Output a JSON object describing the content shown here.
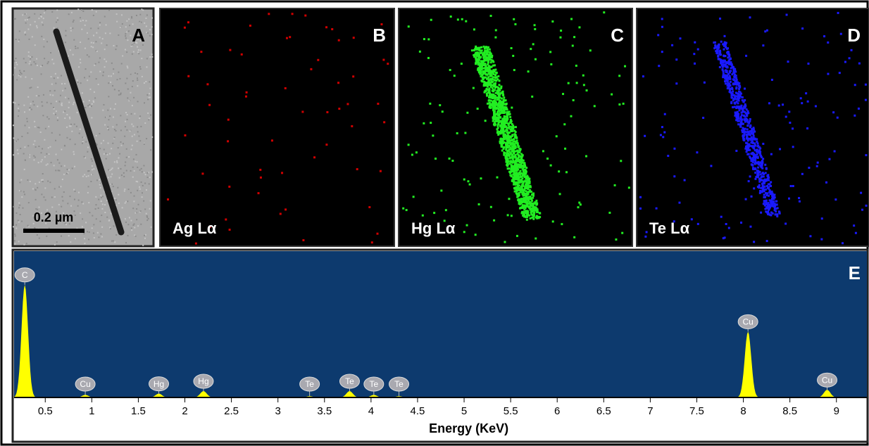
{
  "panels": [
    {
      "label": "A",
      "scale_bar": "0.2 µm"
    },
    {
      "label": "B",
      "element": "Ag Lα",
      "color": "#d00000"
    },
    {
      "label": "C",
      "element": "Hg Lα",
      "color": "#22ee22"
    },
    {
      "label": "D",
      "element": "Te Lα",
      "color": "#1a1aff"
    }
  ],
  "chart_data": {
    "type": "spectrum",
    "label": "E",
    "xlabel": "Energy (KeV)",
    "xlim": [
      0.15,
      9.35
    ],
    "ylim": [
      0,
      100
    ],
    "xticks": [
      0.5,
      1,
      1.5,
      2,
      2.5,
      3,
      3.5,
      4,
      4.5,
      5,
      5.5,
      6,
      6.5,
      7,
      7.5,
      8,
      8.5,
      9
    ],
    "color": "#ffff00",
    "background": "#0d3a6e",
    "peaks": {
      "labels": [
        "C",
        "Cu",
        "Hg",
        "Hg",
        "Te",
        "Te",
        "Te",
        "Te",
        "Cu",
        "Cu"
      ],
      "x": [
        0.28,
        0.93,
        1.72,
        2.2,
        3.34,
        3.77,
        4.03,
        4.3,
        8.05,
        8.9
      ],
      "values": [
        89,
        2,
        3,
        5,
        1,
        5,
        2,
        1,
        52,
        6
      ]
    }
  }
}
